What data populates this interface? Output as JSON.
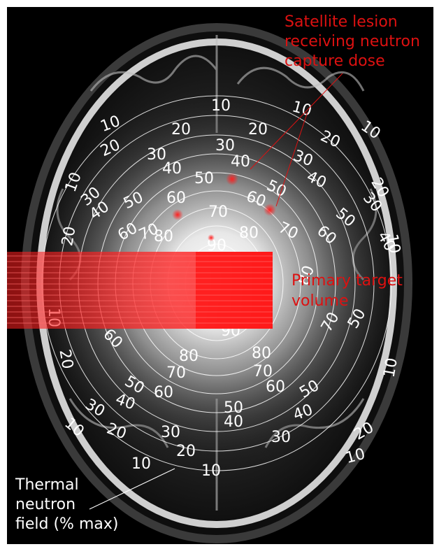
{
  "annotations": {
    "satellite": [
      "Satellite lesion",
      "receiving neutron",
      "capture dose"
    ],
    "primary": [
      "Primary target",
      "volume"
    ],
    "thermal": [
      "Thermal",
      "neutron",
      "field (% max)"
    ]
  },
  "isodose_labels": [
    {
      "text": "10"
    },
    {
      "text": "10"
    },
    {
      "text": "10"
    },
    {
      "text": "10"
    },
    {
      "text": "10"
    },
    {
      "text": "10"
    },
    {
      "text": "10"
    },
    {
      "text": "10"
    },
    {
      "text": "10"
    },
    {
      "text": "10"
    },
    {
      "text": "10"
    },
    {
      "text": "10"
    },
    {
      "text": "20"
    },
    {
      "text": "20"
    },
    {
      "text": "20"
    },
    {
      "text": "20"
    },
    {
      "text": "20"
    },
    {
      "text": "20"
    },
    {
      "text": "20"
    },
    {
      "text": "20"
    },
    {
      "text": "20"
    },
    {
      "text": "20"
    },
    {
      "text": "30"
    },
    {
      "text": "30"
    },
    {
      "text": "30"
    },
    {
      "text": "30"
    },
    {
      "text": "30"
    },
    {
      "text": "30"
    },
    {
      "text": "30"
    },
    {
      "text": "30"
    },
    {
      "text": "40"
    },
    {
      "text": "40"
    },
    {
      "text": "40"
    },
    {
      "text": "40"
    },
    {
      "text": "40"
    },
    {
      "text": "40"
    },
    {
      "text": "40"
    },
    {
      "text": "40"
    },
    {
      "text": "50"
    },
    {
      "text": "50"
    },
    {
      "text": "50"
    },
    {
      "text": "50"
    },
    {
      "text": "50"
    },
    {
      "text": "50"
    },
    {
      "text": "50"
    },
    {
      "text": "50"
    },
    {
      "text": "60"
    },
    {
      "text": "60"
    },
    {
      "text": "60"
    },
    {
      "text": "60"
    },
    {
      "text": "60"
    },
    {
      "text": "60"
    },
    {
      "text": "60"
    },
    {
      "text": "70"
    },
    {
      "text": "70"
    },
    {
      "text": "70"
    },
    {
      "text": "70"
    },
    {
      "text": "70"
    },
    {
      "text": "70"
    },
    {
      "text": "80"
    },
    {
      "text": "80"
    },
    {
      "text": "80"
    },
    {
      "text": "80"
    },
    {
      "text": "80"
    },
    {
      "text": "90"
    },
    {
      "text": "90"
    }
  ],
  "colors": {
    "annotation": "#dd1111",
    "contour": "#ffffff",
    "beam": "#ff2020",
    "background": "#000000"
  }
}
